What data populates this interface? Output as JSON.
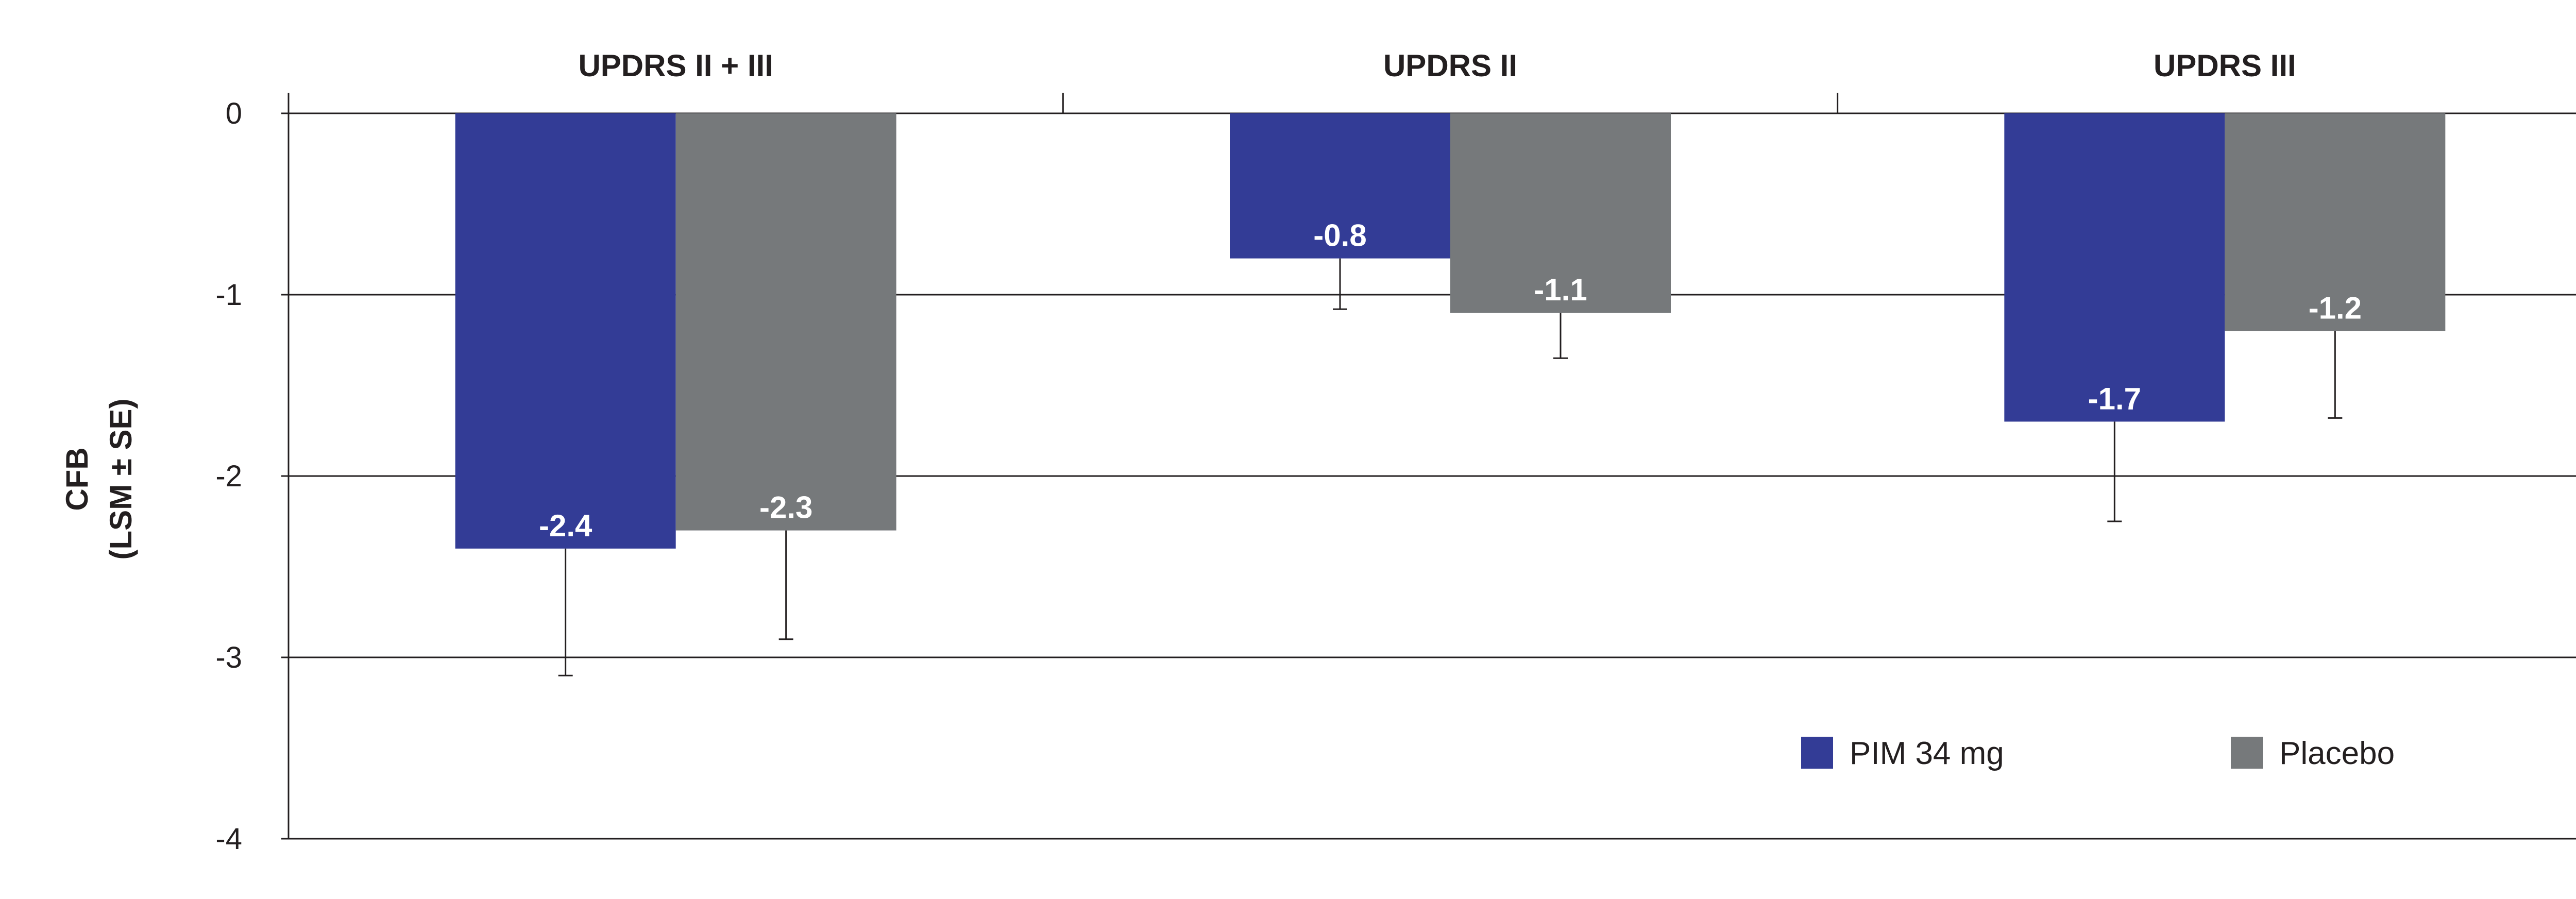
{
  "chart_data": {
    "type": "bar",
    "categories": [
      "UPDRS II + III",
      "UPDRS II",
      "UPDRS III"
    ],
    "series": [
      {
        "name": "PIM 34 mg",
        "color": "#333c96",
        "values": [
          -2.4,
          -0.8,
          -1.7
        ],
        "labels": [
          "-2.4",
          "-0.8",
          "-1.7"
        ],
        "error": [
          0.7,
          0.28,
          0.55
        ]
      },
      {
        "name": "Placebo",
        "color": "#76797b",
        "values": [
          -2.3,
          -1.1,
          -1.2
        ],
        "labels": [
          "-2.3",
          "-1.1",
          "-1.2"
        ],
        "error": [
          0.6,
          0.25,
          0.48
        ]
      }
    ],
    "ylabel_line1": "CFB",
    "ylabel_line2": "(LSM ± SE)",
    "ylim": [
      -4,
      0
    ],
    "yticks": [
      0,
      -1,
      -2,
      -3,
      -4
    ],
    "ytick_labels": [
      "0",
      "-1",
      "-2",
      "-3",
      "-4"
    ],
    "grid": true,
    "legend_position": "bottom-right"
  }
}
